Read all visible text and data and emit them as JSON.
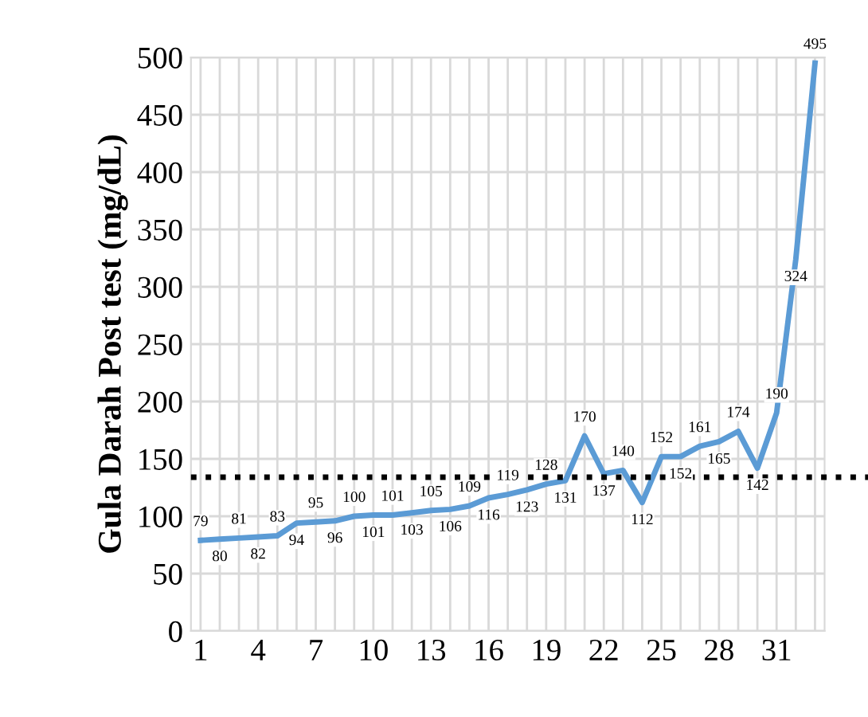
{
  "chart_data": {
    "type": "line",
    "ylabel": "Gula Darah Post test (mg/dL)",
    "categories": [
      "1",
      null,
      null,
      "4",
      null,
      null,
      "7",
      null,
      null,
      "10",
      null,
      null,
      "13",
      null,
      null,
      "16",
      null,
      null,
      "19",
      null,
      null,
      "22",
      null,
      null,
      "25",
      null,
      null,
      "28",
      null,
      null,
      "31",
      null,
      null
    ],
    "series": [
      {
        "color": "#5b9bd5",
        "values": [
          79,
          80,
          81,
          82,
          83,
          94,
          95,
          96,
          100,
          101,
          101,
          103,
          105,
          106,
          109,
          116,
          119,
          123,
          128,
          131,
          170,
          137,
          140,
          112,
          152,
          152,
          161,
          165,
          174,
          142,
          190,
          324,
          495
        ]
      }
    ],
    "ylim": [
      0,
      500
    ],
    "yticks": [
      0,
      50,
      100,
      150,
      200,
      250,
      300,
      350,
      400,
      450,
      500
    ],
    "ref_lines": [
      {
        "axis": "y",
        "value": 134,
        "color": "#000000",
        "line_style": "dotted"
      }
    ],
    "data_labels": true,
    "grid": true,
    "marker": "none",
    "line_style": "solid"
  }
}
